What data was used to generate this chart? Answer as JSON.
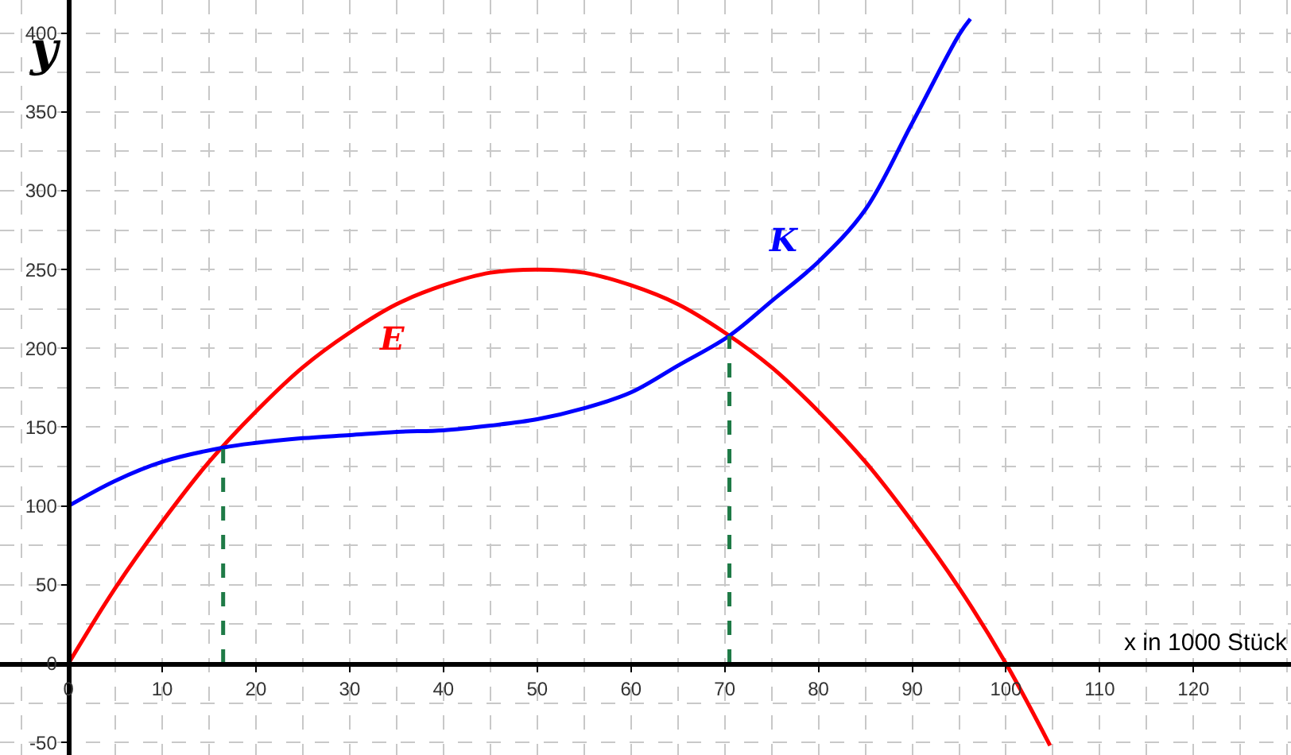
{
  "chart_data": {
    "type": "line",
    "xlabel": "x in 1000 Stück",
    "ylabel": "y",
    "xlim": [
      -7.3,
      130.4
    ],
    "ylim": [
      -58,
      421
    ],
    "xticks": [
      0,
      10,
      20,
      30,
      40,
      50,
      60,
      70,
      80,
      90,
      100,
      110,
      120
    ],
    "yticks": [
      -50,
      0,
      50,
      100,
      150,
      200,
      250,
      300,
      350,
      400
    ],
    "grid": true,
    "legend": false,
    "marker": "none",
    "line_style": "solid",
    "series": [
      {
        "name": "E",
        "color": "#ff0000",
        "x": [
          0,
          5,
          10,
          15,
          20,
          25,
          30,
          35,
          40,
          45,
          50,
          55,
          60,
          65,
          70,
          75,
          80,
          85,
          90,
          95,
          100,
          104.7
        ],
        "values": [
          0,
          48,
          90,
          128,
          160,
          188,
          210,
          228,
          240,
          248,
          250,
          248,
          240,
          228,
          210,
          188,
          160,
          128,
          90,
          48,
          0,
          -52
        ]
      },
      {
        "name": "K",
        "color": "#0000ff",
        "x": [
          0,
          5,
          10,
          16.5,
          20,
          25,
          30,
          35,
          40,
          45,
          50,
          55,
          60,
          65,
          70.5,
          75,
          80,
          85,
          90,
          95,
          96.2
        ],
        "values": [
          100,
          116,
          128,
          137,
          140,
          143,
          145,
          147,
          148,
          151,
          155,
          162,
          172,
          189,
          208,
          230,
          255,
          288,
          343,
          399,
          409
        ]
      },
      {
        "color": "#1e7a46",
        "line_style": "dashed",
        "x": [
          16.5,
          16.5
        ],
        "values": [
          0,
          137
        ]
      },
      {
        "color": "#1e7a46",
        "line_style": "dashed",
        "x": [
          70.5,
          70.5
        ],
        "values": [
          0,
          208
        ]
      }
    ]
  }
}
